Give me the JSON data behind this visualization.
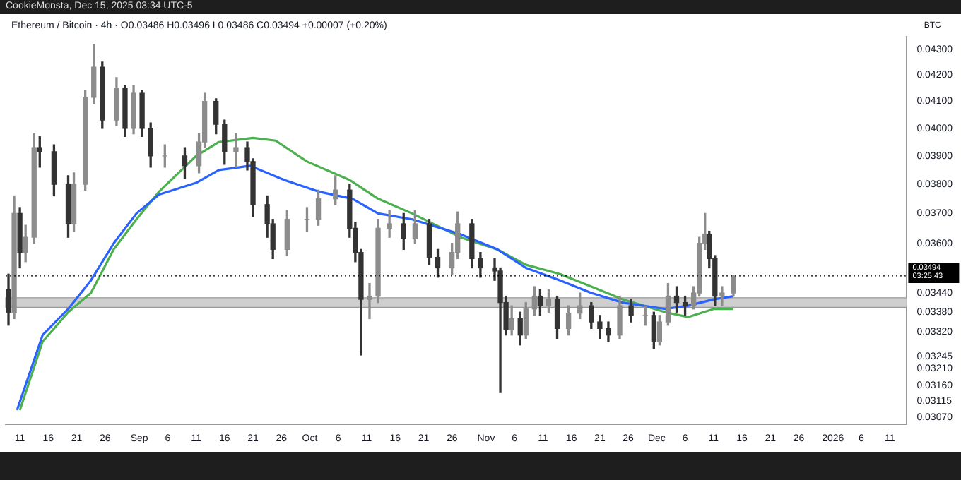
{
  "chart_data": {
    "type": "candlestick",
    "title": "Ethereum / Bitcoin · 4h · O0.03486 H0.03496 L0.03486 C0.03494 +0.00007 (+0.20%)",
    "subtitle": "CookieMonsta, Dec 15, 2025 03:34 UTC-5",
    "ylabel": "BTC",
    "colors": [
      "#333333",
      "#8c8c8c",
      "#333333",
      "#8c8c8c",
      "#8c8c8c",
      "#333333",
      "#333333",
      "#333333",
      "#8c8c8c",
      "#8c8c8c",
      "#8c8c8c",
      "#333333",
      "#8c8c8c",
      "#333333",
      "#8c8c8c",
      "#333333",
      "#333333",
      "#8c8c8c",
      "#333333",
      "#8c8c8c",
      "#8c8c8c",
      "#333333",
      "#333333",
      "#8c8c8c",
      "#333333",
      "#333333",
      "#333333",
      "#333333",
      "#8c8c8c",
      "#8c8c8c",
      "#8c8c8c",
      "#8c8c8c",
      "#333333",
      "#333333",
      "#333333",
      "#8c8c8c",
      "#8c8c8c",
      "#8c8c8c",
      "#333333",
      "#8c8c8c",
      "#333333",
      "#333333",
      "#8c8c8c",
      "#8c8c8c",
      "#333333",
      "#333333",
      "#333333",
      "#333333",
      "#333333",
      "#8c8c8c",
      "#333333",
      "#8c8c8c",
      "#8c8c8c",
      "#333333",
      "#8c8c8c",
      "#333333",
      "#8c8c8c",
      "#8c8c8c",
      "#333333",
      "#333333",
      "#333333",
      "#8c8c8c",
      "#333333",
      "#8c8c8c",
      "#333333",
      "#8c8c8c",
      "#8c8c8c",
      "#333333",
      "#333333",
      "#8c8c8c",
      "#8c8c8c",
      "#8c8c8c",
      "#333333",
      "#333333",
      "#8c8c8c",
      "#8c8c8c"
    ],
    "x": [
      "2025-08-09",
      "2025-08-10",
      "2025-08-11",
      "2025-08-12",
      "2025-08-13T12:00",
      "2025-08-14T12:00",
      "2025-08-17",
      "2025-08-19T12:00",
      "2025-08-20T12:00",
      "2025-08-22T12:00",
      "2025-08-24",
      "2025-08-25T12:00",
      "2025-08-28",
      "2025-08-29T12:00",
      "2025-08-31",
      "2025-09-01T12:00",
      "2025-09-03",
      "2025-09-05T12:00",
      "2025-09-09",
      "2025-09-11T12:00",
      "2025-09-12T12:00",
      "2025-09-14T12:00",
      "2025-09-16",
      "2025-09-18",
      "2025-09-20",
      "2025-09-21",
      "2025-09-23T12:00",
      "2025-09-24T12:00",
      "2025-09-27",
      "2025-09-30T12:00",
      "2025-10-02T12:00",
      "2025-10-05T12:00",
      "2025-10-08",
      "2025-10-09",
      "2025-10-10",
      "2025-10-11T12:00",
      "2025-10-13",
      "2025-10-15",
      "2025-10-17T12:00",
      "2025-10-19T12:00",
      "2025-10-22",
      "2025-10-23T12:00",
      "2025-10-26",
      "2025-10-27",
      "2025-10-29T12:00",
      "2025-10-31",
      "2025-11-02T12:00",
      "2025-11-03T12:00",
      "2025-11-04T12:00",
      "2025-11-05T12:00",
      "2025-11-07",
      "2025-11-08",
      "2025-11-09T12:00",
      "2025-11-10T12:00",
      "2025-11-12",
      "2025-11-13T12:00",
      "2025-11-15T12:00",
      "2025-11-17T12:00",
      "2025-11-19T12:00",
      "2025-11-21",
      "2025-11-22T12:00",
      "2025-11-24T12:00",
      "2025-11-26T12:00",
      "2025-11-29",
      "2025-11-30T12:00",
      "2025-12-01T12:00",
      "2025-12-03",
      "2025-12-04T12:00",
      "2025-12-06",
      "2025-12-07T12:00",
      "2025-12-08T12:00",
      "2025-12-09T12:00",
      "2025-12-10T06:00",
      "2025-12-11T06:00",
      "2025-12-12T12:00",
      "2025-12-14T12:00"
    ],
    "ohlc": [
      [
        0.0345,
        0.035,
        0.0334,
        0.0338
      ],
      [
        0.0338,
        0.0376,
        0.0336,
        0.037
      ],
      [
        0.037,
        0.0372,
        0.0352,
        0.0357
      ],
      [
        0.0357,
        0.0366,
        0.0354,
        0.0362
      ],
      [
        0.0362,
        0.0398,
        0.036,
        0.0393
      ],
      [
        0.0393,
        0.0397,
        0.0386,
        0.03915
      ],
      [
        0.03915,
        0.0394,
        0.0376,
        0.038
      ],
      [
        0.038,
        0.0383,
        0.0362,
        0.03665
      ],
      [
        0.03665,
        0.0384,
        0.0364,
        0.038
      ],
      [
        0.038,
        0.0414,
        0.0378,
        0.04115
      ],
      [
        0.04115,
        0.0432,
        0.0409,
        0.0423
      ],
      [
        0.0423,
        0.0425,
        0.04,
        0.0403
      ],
      [
        0.0403,
        0.0419,
        0.0401,
        0.0415
      ],
      [
        0.0415,
        0.0416,
        0.0397,
        0.04
      ],
      [
        0.04,
        0.0416,
        0.0398,
        0.0413
      ],
      [
        0.0413,
        0.0414,
        0.0397,
        0.04
      ],
      [
        0.04,
        0.0402,
        0.0386,
        0.039
      ],
      [
        0.039,
        0.0394,
        0.0386,
        0.039
      ],
      [
        0.039,
        0.0393,
        0.0382,
        0.03865
      ],
      [
        0.03865,
        0.0398,
        0.0384,
        0.0395
      ],
      [
        0.0395,
        0.0413,
        0.0393,
        0.041
      ],
      [
        0.041,
        0.0411,
        0.0398,
        0.04015
      ],
      [
        0.04015,
        0.0403,
        0.0387,
        0.03915
      ],
      [
        0.03915,
        0.0398,
        0.0386,
        0.0393
      ],
      [
        0.0393,
        0.0395,
        0.0385,
        0.0388
      ],
      [
        0.0388,
        0.0389,
        0.0369,
        0.0373
      ],
      [
        0.0373,
        0.0376,
        0.0362,
        0.03665
      ],
      [
        0.03665,
        0.0368,
        0.0355,
        0.0358
      ],
      [
        0.0358,
        0.0371,
        0.0356,
        0.0368
      ],
      [
        0.0368,
        0.0372,
        0.0364,
        0.0368
      ],
      [
        0.0368,
        0.0378,
        0.0366,
        0.0375
      ],
      [
        0.0375,
        0.0383,
        0.0373,
        0.0378
      ],
      [
        0.0378,
        0.038,
        0.0362,
        0.0365
      ],
      [
        0.0365,
        0.0367,
        0.0354,
        0.0357
      ],
      [
        0.0357,
        0.0358,
        0.0325,
        0.0342
      ],
      [
        0.0342,
        0.0347,
        0.0336,
        0.0343
      ],
      [
        0.0343,
        0.0368,
        0.0341,
        0.0365
      ],
      [
        0.0365,
        0.0371,
        0.0362,
        0.03665
      ],
      [
        0.03665,
        0.037,
        0.0358,
        0.03615
      ],
      [
        0.03615,
        0.0371,
        0.036,
        0.03665
      ],
      [
        0.03665,
        0.0368,
        0.0353,
        0.03554
      ],
      [
        0.03554,
        0.0358,
        0.0349,
        0.0352
      ],
      [
        0.0352,
        0.036,
        0.035,
        0.0357
      ],
      [
        0.0357,
        0.03705,
        0.0355,
        0.03665
      ],
      [
        0.03665,
        0.0368,
        0.0352,
        0.0355
      ],
      [
        0.0355,
        0.0357,
        0.0349,
        0.0352
      ],
      [
        0.0352,
        0.0355,
        0.0348,
        0.0351
      ],
      [
        0.0351,
        0.0352,
        0.0314,
        0.0341
      ],
      [
        0.0341,
        0.0343,
        0.0331,
        0.03326
      ],
      [
        0.03326,
        0.034,
        0.0331,
        0.0336
      ],
      [
        0.0336,
        0.0338,
        0.0328,
        0.0331
      ],
      [
        0.0331,
        0.0341,
        0.033,
        0.0339
      ],
      [
        0.0339,
        0.0346,
        0.0337,
        0.0343
      ],
      [
        0.0343,
        0.0345,
        0.0337,
        0.034
      ],
      [
        0.034,
        0.0345,
        0.0338,
        0.0342
      ],
      [
        0.0342,
        0.0343,
        0.033,
        0.0333
      ],
      [
        0.0333,
        0.034,
        0.0331,
        0.03377
      ],
      [
        0.03377,
        0.0344,
        0.0336,
        0.034
      ],
      [
        0.034,
        0.0341,
        0.0333,
        0.0335
      ],
      [
        0.0335,
        0.0337,
        0.033,
        0.0333
      ],
      [
        0.0333,
        0.0335,
        0.0329,
        0.0331
      ],
      [
        0.0331,
        0.0343,
        0.033,
        0.034
      ],
      [
        0.034,
        0.0342,
        0.0335,
        0.0337
      ],
      [
        0.0337,
        0.034,
        0.0334,
        0.0337
      ],
      [
        0.0337,
        0.0338,
        0.0327,
        0.0329
      ],
      [
        0.0329,
        0.0337,
        0.0328,
        0.0335
      ],
      [
        0.0335,
        0.0347,
        0.0334,
        0.0343
      ],
      [
        0.0343,
        0.0346,
        0.0338,
        0.0341
      ],
      [
        0.0341,
        0.0343,
        0.0337,
        0.034
      ],
      [
        0.034,
        0.0346,
        0.0339,
        0.0344
      ],
      [
        0.0344,
        0.0362,
        0.0343,
        0.036
      ],
      [
        0.036,
        0.037,
        0.0358,
        0.0363
      ],
      [
        0.0363,
        0.0364,
        0.0352,
        0.0355
      ],
      [
        0.0355,
        0.0356,
        0.034,
        0.0343
      ],
      [
        0.0343,
        0.0346,
        0.034,
        0.0344
      ],
      [
        0.0344,
        0.03496,
        0.0343,
        0.03494
      ]
    ],
    "series": [
      {
        "type": "line",
        "color": "#2962ff",
        "x": [
          "2025-08-10T12:00",
          "2025-08-15",
          "2025-08-19T12:00",
          "2025-08-23T12:00",
          "2025-08-27T12:00",
          "2025-08-31T12:00",
          "2025-09-04T12:00",
          "2025-09-11",
          "2025-09-15",
          "2025-09-20T12:00",
          "2025-09-26T12:00",
          "2025-10-02T12:00",
          "2025-10-08T12:00",
          "2025-10-13",
          "2025-10-19",
          "2025-10-27T12:00",
          "2025-11-03",
          "2025-11-08",
          "2025-11-14",
          "2025-11-19T12:00",
          "2025-11-25",
          "2025-12-02T12:00",
          "2025-12-06T12:00",
          "2025-12-11",
          "2025-12-14T12:00"
        ],
        "values": [
          0.0309,
          0.0331,
          0.0339,
          0.0348,
          0.036,
          0.037,
          0.03765,
          0.03805,
          0.0385,
          0.03865,
          0.03815,
          0.03775,
          0.0375,
          0.037,
          0.0368,
          0.0363,
          0.0358,
          0.0352,
          0.0348,
          0.0344,
          0.0341,
          0.0339,
          0.034,
          0.0342,
          0.0343
        ]
      },
      {
        "type": "line",
        "color": "#4caf50",
        "x": [
          "2025-08-11",
          "2025-08-15",
          "2025-08-19T12:00",
          "2025-08-23T12:00",
          "2025-08-27T12:00",
          "2025-08-31T12:00",
          "2025-09-04T12:00",
          "2025-09-11",
          "2025-09-15",
          "2025-09-21",
          "2025-09-25",
          "2025-09-30T12:00",
          "2025-10-08",
          "2025-10-13",
          "2025-10-19",
          "2025-10-27T12:00",
          "2025-11-03",
          "2025-11-08",
          "2025-11-14",
          "2025-11-19T12:00",
          "2025-11-25",
          "2025-12-02T12:00",
          "2025-12-06T12:00",
          "2025-12-11",
          "2025-12-14T12:00"
        ],
        "values": [
          0.0309,
          0.0329,
          0.0338,
          0.0344,
          0.0358,
          0.0368,
          0.03775,
          0.039,
          0.0395,
          0.03965,
          0.03955,
          0.0388,
          0.03815,
          0.0375,
          0.037,
          0.0362,
          0.0358,
          0.0353,
          0.035,
          0.0346,
          0.0342,
          0.0338,
          0.03365,
          0.0339,
          0.0339
        ]
      }
    ],
    "xlim": [
      "2025-08-08T12:00",
      "2026-01-14"
    ],
    "xticks": [
      {
        "value": "2025-08-11",
        "label": "11"
      },
      {
        "value": "2025-08-16",
        "label": "16"
      },
      {
        "value": "2025-08-21",
        "label": "21"
      },
      {
        "value": "2025-08-26",
        "label": "26"
      },
      {
        "value": "2025-09-01",
        "label": "Sep"
      },
      {
        "value": "2025-09-06",
        "label": "6"
      },
      {
        "value": "2025-09-11",
        "label": "11"
      },
      {
        "value": "2025-09-16",
        "label": "16"
      },
      {
        "value": "2025-09-21",
        "label": "21"
      },
      {
        "value": "2025-09-26",
        "label": "26"
      },
      {
        "value": "2025-10-01",
        "label": "Oct"
      },
      {
        "value": "2025-10-06",
        "label": "6"
      },
      {
        "value": "2025-10-11",
        "label": "11"
      },
      {
        "value": "2025-10-16",
        "label": "16"
      },
      {
        "value": "2025-10-21",
        "label": "21"
      },
      {
        "value": "2025-10-26",
        "label": "26"
      },
      {
        "value": "2025-11-01",
        "label": "Nov"
      },
      {
        "value": "2025-11-06",
        "label": "6"
      },
      {
        "value": "2025-11-11",
        "label": "11"
      },
      {
        "value": "2025-11-16",
        "label": "16"
      },
      {
        "value": "2025-11-21",
        "label": "21"
      },
      {
        "value": "2025-11-26",
        "label": "26"
      },
      {
        "value": "2025-12-01",
        "label": "Dec"
      },
      {
        "value": "2025-12-06",
        "label": "6"
      },
      {
        "value": "2025-12-11",
        "label": "11"
      },
      {
        "value": "2025-12-16",
        "label": "16"
      },
      {
        "value": "2025-12-21",
        "label": "21"
      },
      {
        "value": "2025-12-26",
        "label": "26"
      },
      {
        "value": "2026-01-01",
        "label": "2026"
      },
      {
        "value": "2026-01-06",
        "label": "6"
      },
      {
        "value": "2026-01-11",
        "label": "11"
      }
    ],
    "log": true,
    "ylim": [
      0.0305,
      0.0435
    ],
    "yticks": [
      {
        "value": 0.043,
        "label": "0.04300"
      },
      {
        "value": 0.042,
        "label": "0.04200"
      },
      {
        "value": 0.041,
        "label": "0.04100"
      },
      {
        "value": 0.04,
        "label": "0.04000"
      },
      {
        "value": 0.039,
        "label": "0.03900"
      },
      {
        "value": 0.038,
        "label": "0.03800"
      },
      {
        "value": 0.037,
        "label": "0.03700"
      },
      {
        "value": 0.036,
        "label": "0.03600"
      },
      {
        "value": 0.0344,
        "label": "0.03440"
      },
      {
        "value": 0.0338,
        "label": "0.03380"
      },
      {
        "value": 0.0332,
        "label": "0.03320"
      },
      {
        "value": 0.03245,
        "label": "0.03245"
      },
      {
        "value": 0.0321,
        "label": "0.03210"
      },
      {
        "value": 0.0316,
        "label": "0.03160"
      },
      {
        "value": 0.03115,
        "label": "0.03115"
      },
      {
        "value": 0.0307,
        "label": "0.03070"
      }
    ],
    "ref_lines": [
      {
        "axis": "y",
        "value": 0.03494,
        "label": "0.03494",
        "color": "#000000",
        "line_style": "dotted"
      }
    ],
    "bands": [
      {
        "axis": "y",
        "from": 0.03395,
        "to": 0.03425,
        "color": "#cfcfcf"
      }
    ],
    "annotations": [
      "03:25:43"
    ]
  }
}
